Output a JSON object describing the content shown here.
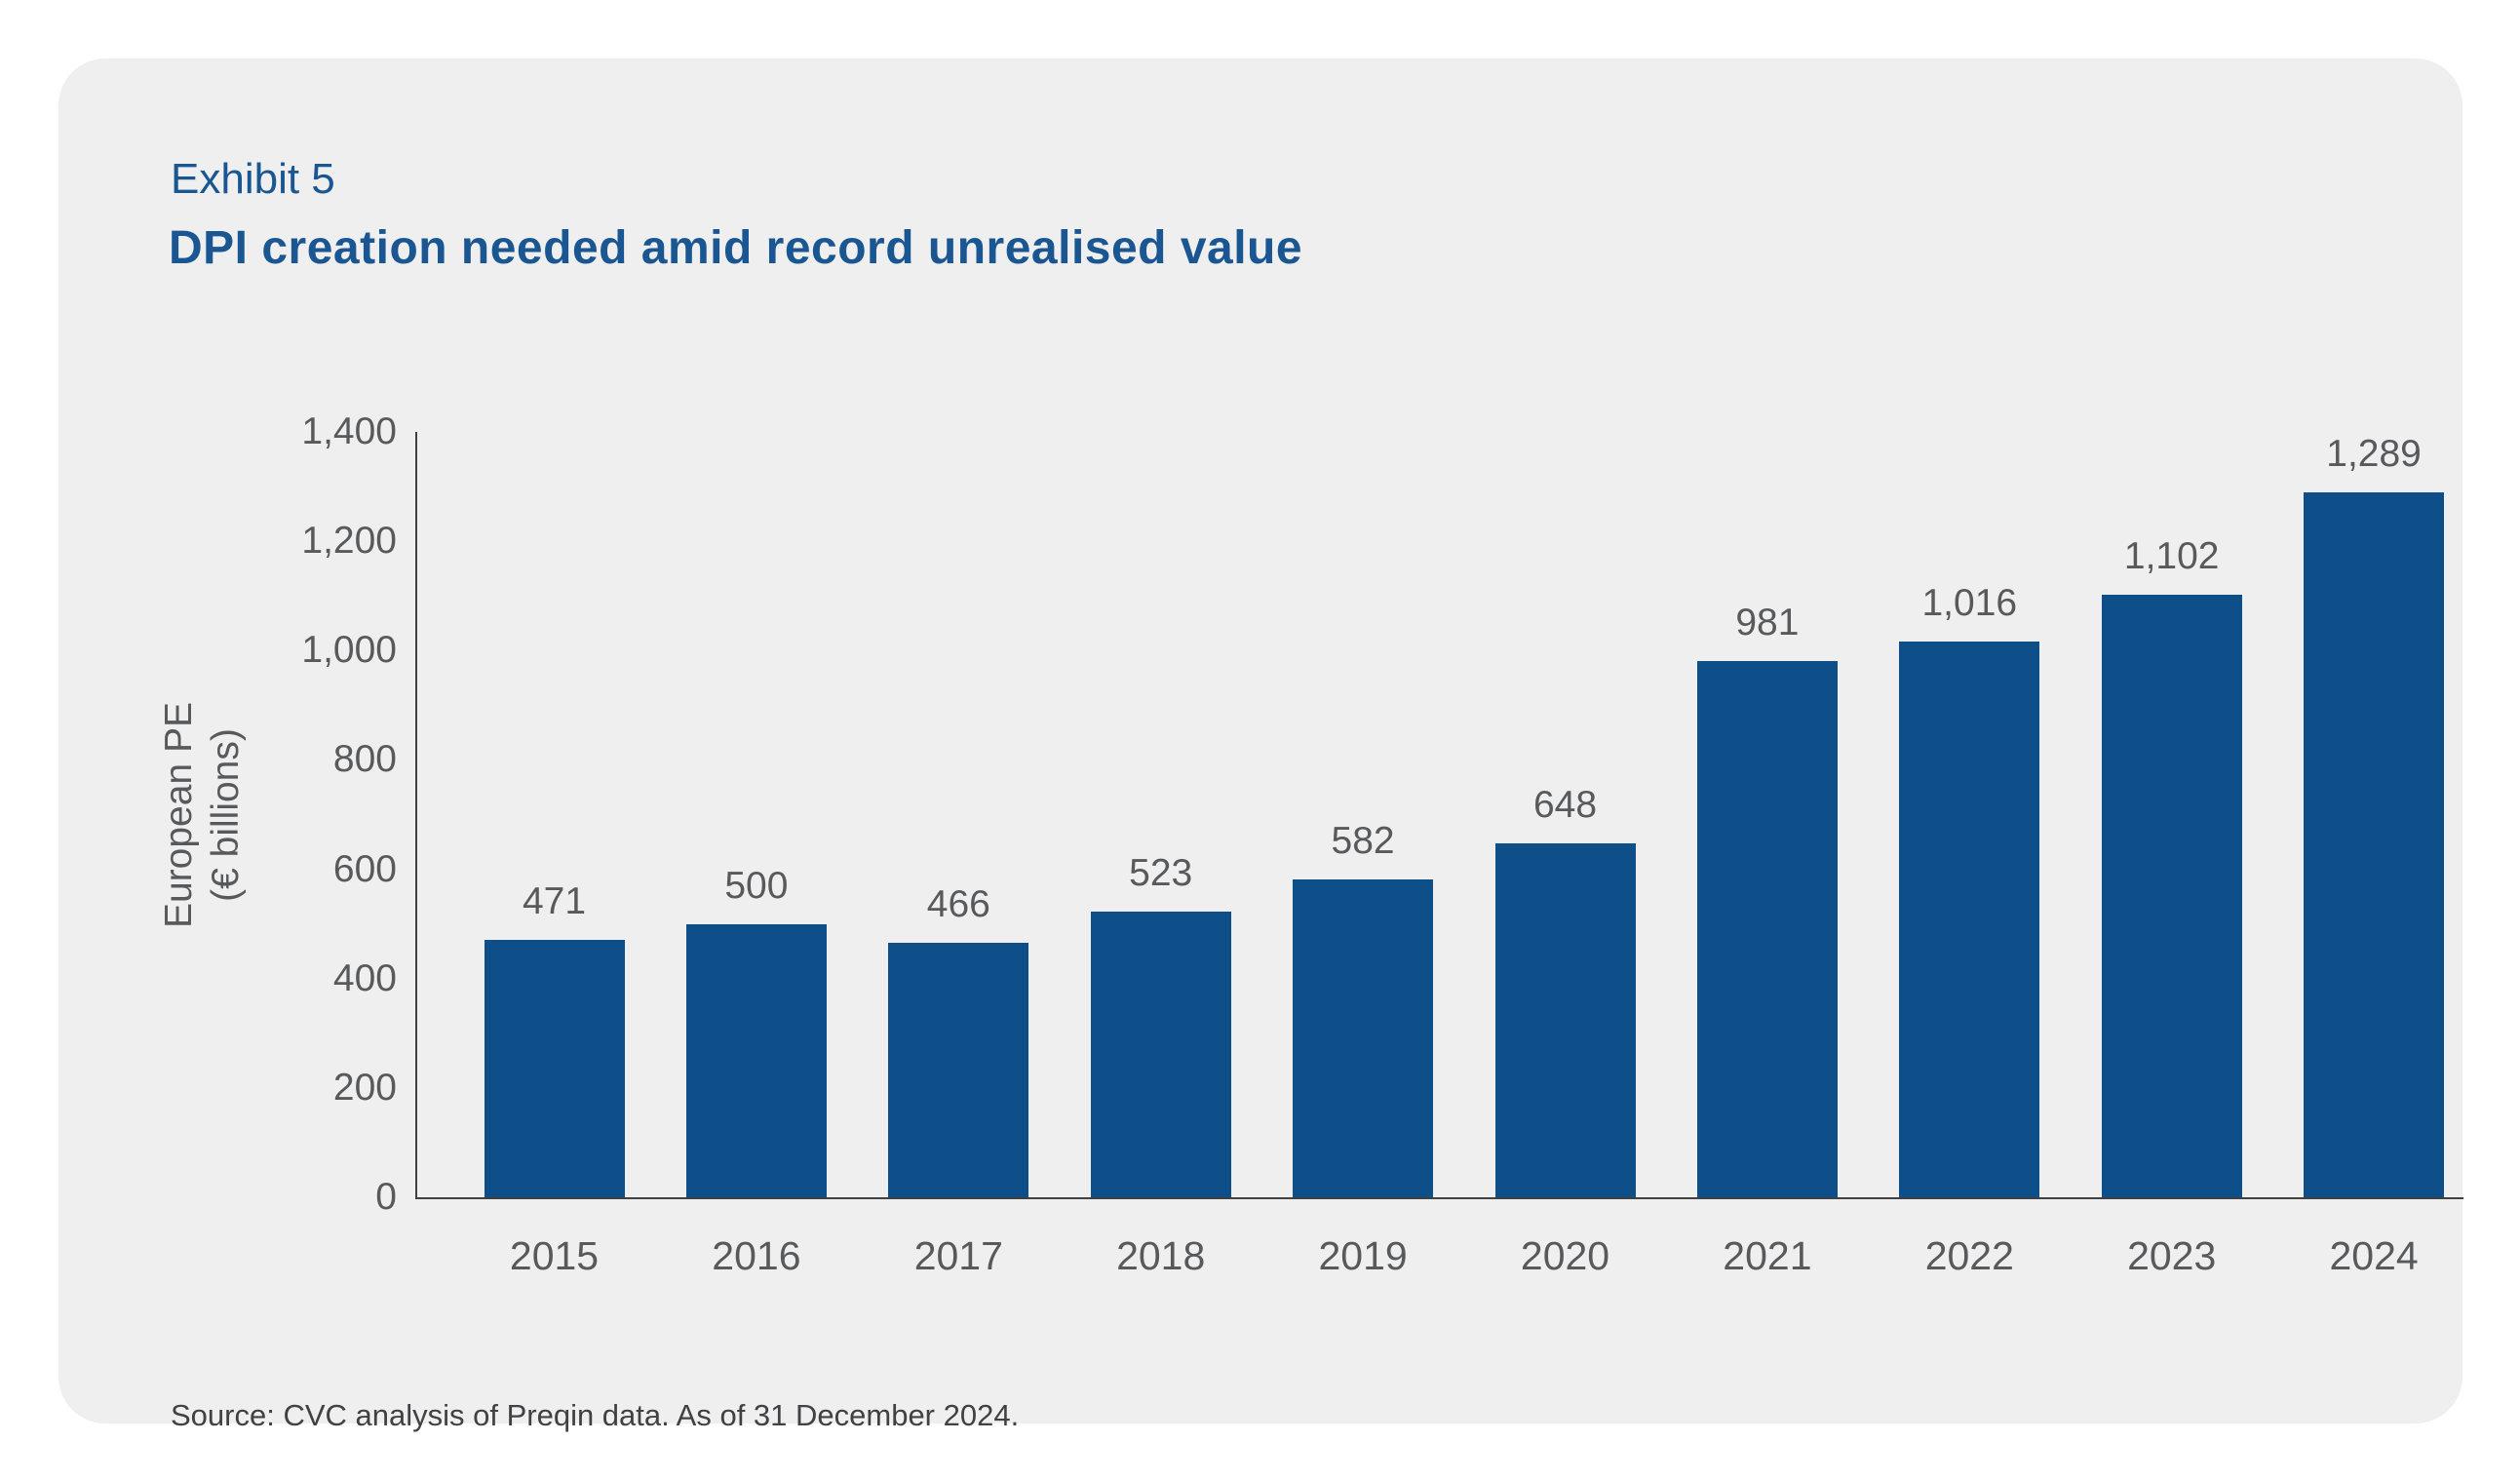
{
  "exhibit_label": "Exhibit 5",
  "source_note": "Source: CVC analysis of Preqin data. As of 31 December 2024.",
  "colors": {
    "bar": "#0e4e89",
    "title_blue": "#1a5691",
    "axis_text_gray": "#58595b",
    "axis_line_gray": "#3f4041",
    "card_background": "#efeff0",
    "page_background": "#ffffff"
  },
  "chart_data": {
    "type": "bar",
    "title": "DPI creation needed amid record unrealised value",
    "categories": [
      "2015",
      "2016",
      "2017",
      "2018",
      "2019",
      "2020",
      "2021",
      "2022",
      "2023",
      "2024"
    ],
    "values": [
      471,
      500,
      466,
      523,
      582,
      648,
      981,
      1016,
      1102,
      1289
    ],
    "value_labels": [
      "471",
      "500",
      "466",
      "523",
      "582",
      "648",
      "981",
      "1,016",
      "1,102",
      "1,289"
    ],
    "xlabel": "",
    "ylabel_line1": "European PE",
    "ylabel_line2": "(€ billions)",
    "ylim": [
      0,
      1400
    ],
    "yticks": [
      0,
      200,
      400,
      600,
      800,
      1000,
      1200,
      1400
    ],
    "ytick_labels": [
      "0",
      "200",
      "400",
      "600",
      "800",
      "1,000",
      "1,200",
      "1,400"
    ],
    "grid": false,
    "legend_position": "none",
    "bar_color": "#0e4e89"
  }
}
